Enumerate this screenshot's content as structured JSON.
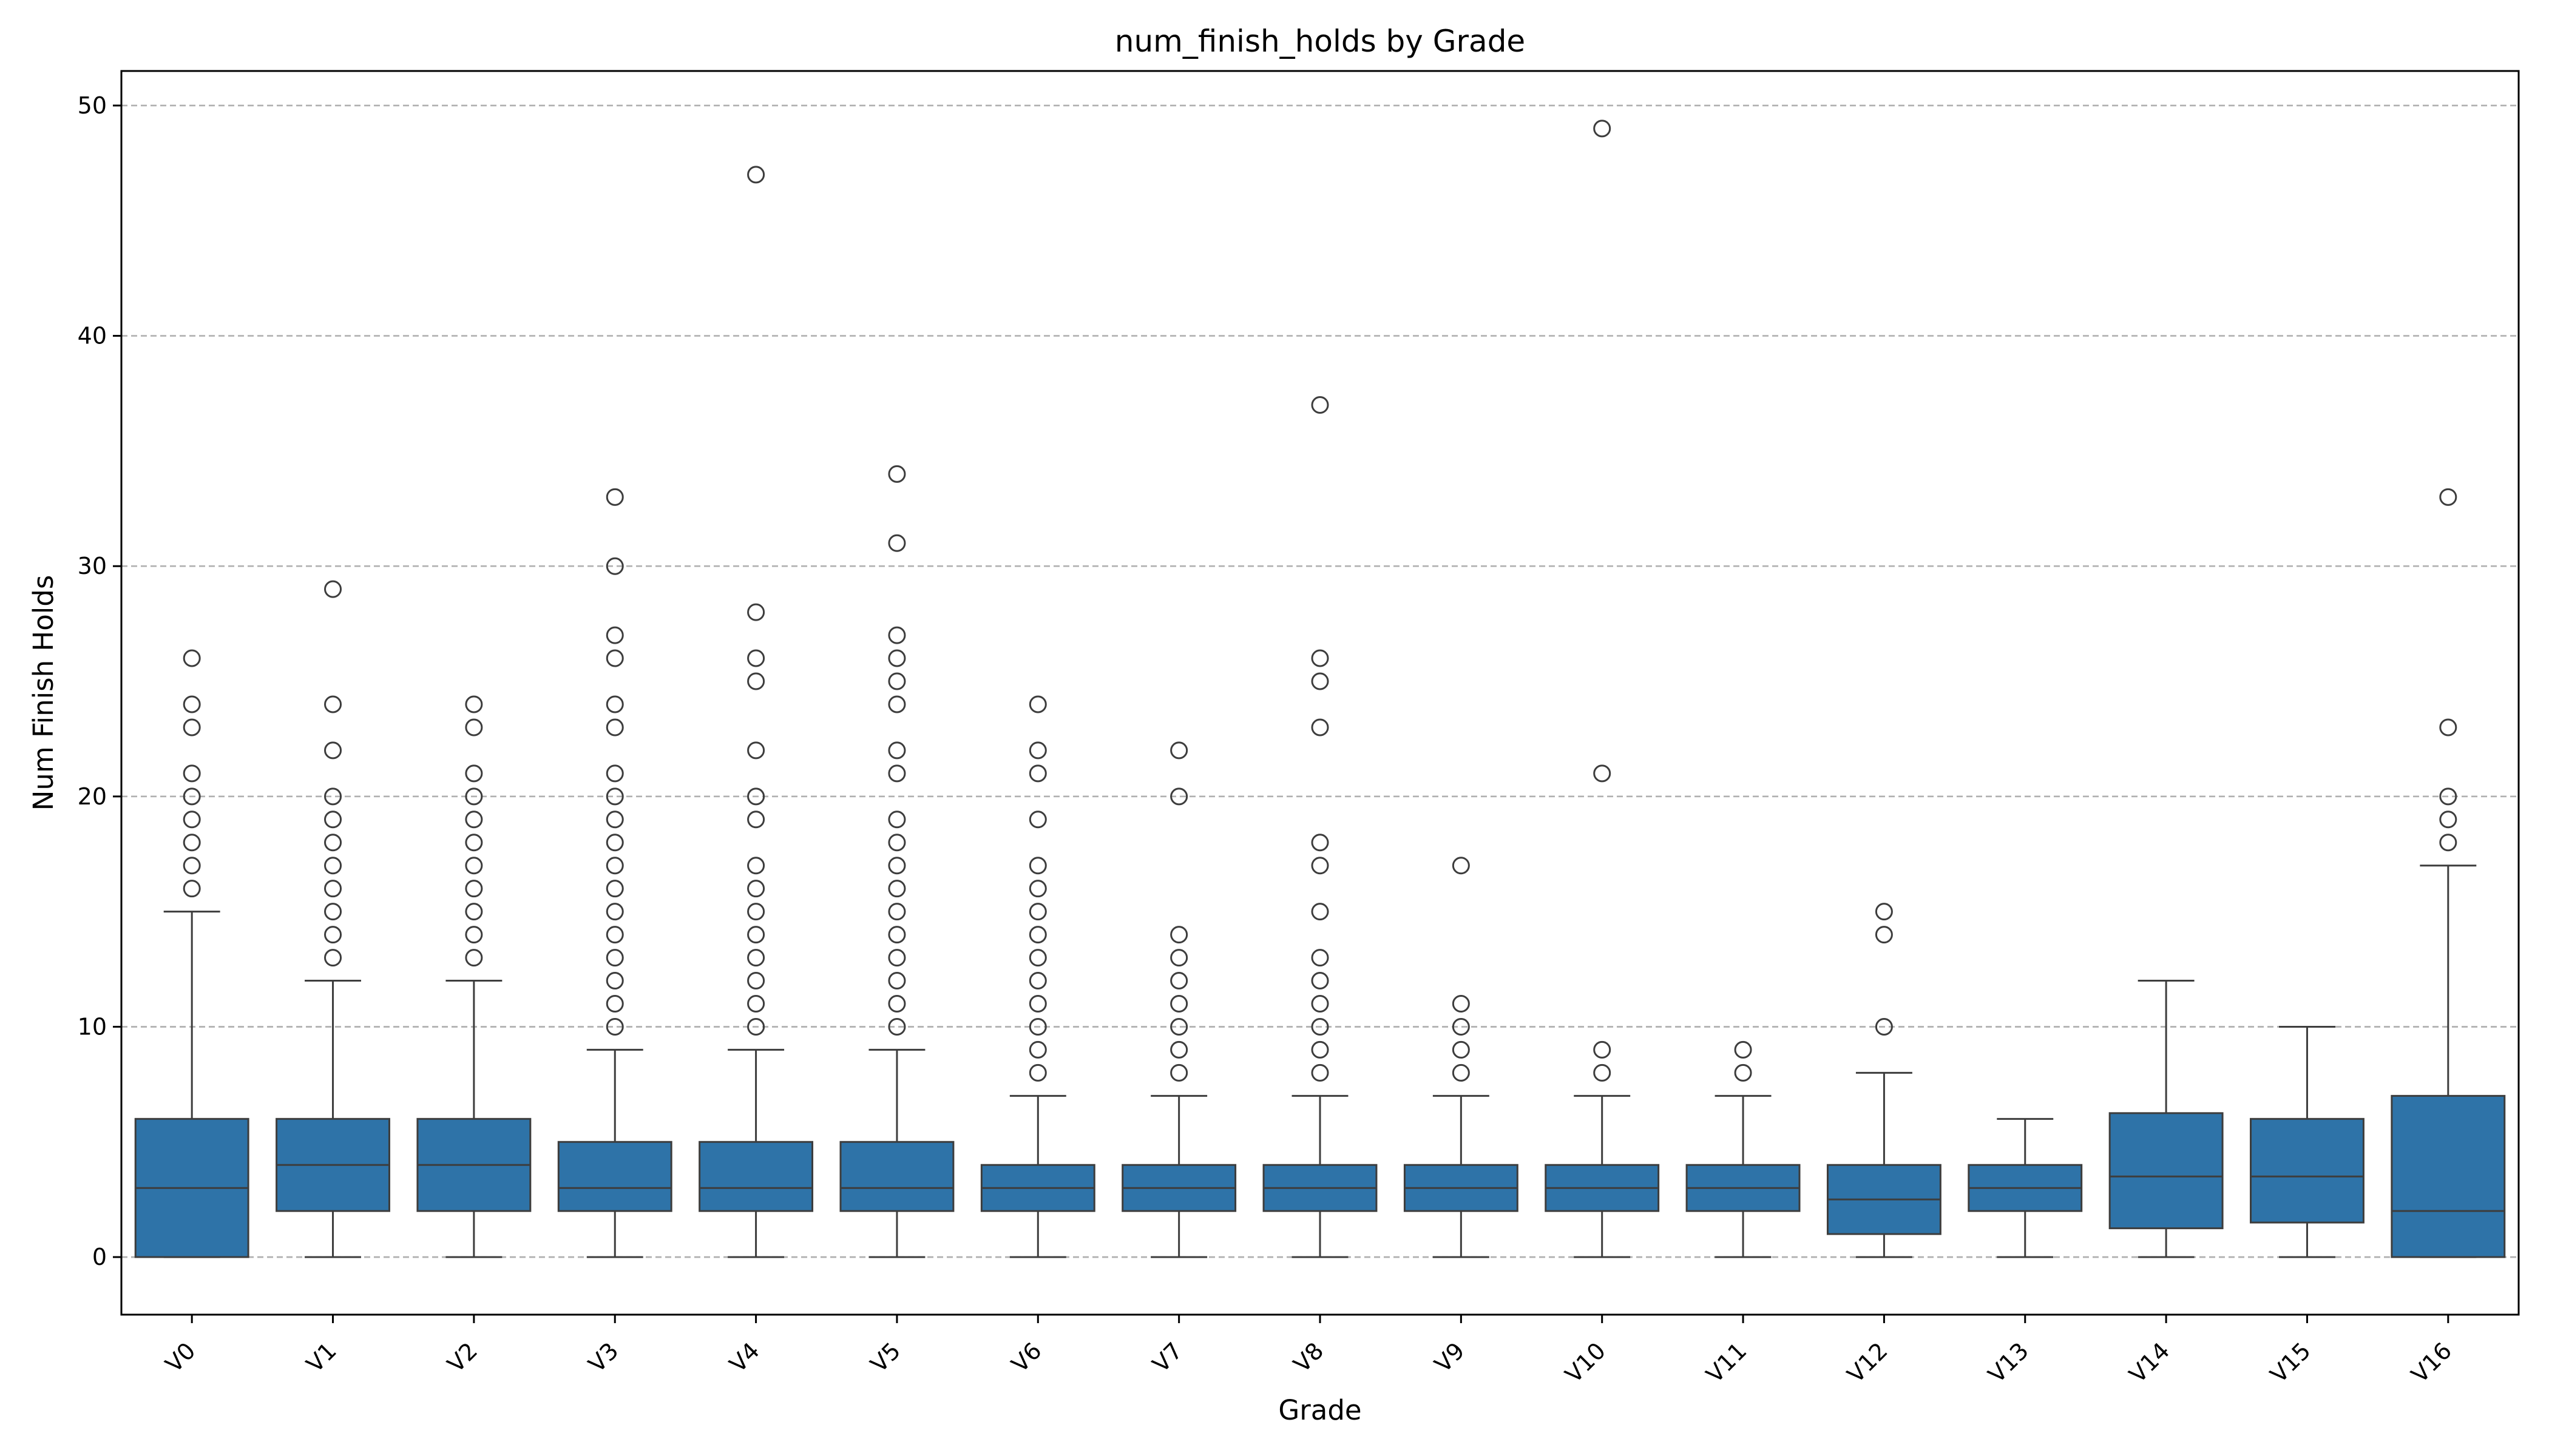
{
  "chart_data": {
    "type": "box",
    "title": "num_finish_holds by Grade",
    "xlabel": "Grade",
    "ylabel": "Num Finish Holds",
    "ylim": [
      -2.5,
      51.5
    ],
    "yticks": [
      0,
      10,
      20,
      30,
      40,
      50
    ],
    "grid": "y-dashed",
    "box_color": "#2e73a8",
    "line_color": "#3d3d3d",
    "categories": [
      "V0",
      "V1",
      "V2",
      "V3",
      "V4",
      "V5",
      "V6",
      "V7",
      "V8",
      "V9",
      "V10",
      "V11",
      "V12",
      "V13",
      "V14",
      "V15",
      "V16"
    ],
    "boxes": [
      {
        "q1": 0,
        "median": 3,
        "q3": 6,
        "whislo": 0,
        "whishi": 15,
        "fliers": [
          16,
          17,
          18,
          19,
          20,
          21,
          23,
          24,
          26
        ]
      },
      {
        "q1": 2,
        "median": 4,
        "q3": 6,
        "whislo": 0,
        "whishi": 12,
        "fliers": [
          13,
          14,
          15,
          16,
          17,
          18,
          19,
          20,
          22,
          24,
          29
        ]
      },
      {
        "q1": 2,
        "median": 4,
        "q3": 6,
        "whislo": 0,
        "whishi": 12,
        "fliers": [
          13,
          14,
          15,
          16,
          17,
          18,
          19,
          20,
          21,
          23,
          24
        ]
      },
      {
        "q1": 2,
        "median": 3,
        "q3": 5,
        "whislo": 0,
        "whishi": 9,
        "fliers": [
          10,
          11,
          12,
          13,
          14,
          15,
          16,
          17,
          18,
          19,
          20,
          21,
          23,
          24,
          26,
          27,
          30,
          33
        ]
      },
      {
        "q1": 2,
        "median": 3,
        "q3": 5,
        "whislo": 0,
        "whishi": 9,
        "fliers": [
          10,
          11,
          12,
          13,
          14,
          15,
          16,
          17,
          19,
          20,
          22,
          25,
          26,
          28,
          47
        ]
      },
      {
        "q1": 2,
        "median": 3,
        "q3": 5,
        "whislo": 0,
        "whishi": 9,
        "fliers": [
          10,
          11,
          12,
          13,
          14,
          15,
          16,
          17,
          18,
          19,
          21,
          22,
          24,
          25,
          26,
          27,
          31,
          34
        ]
      },
      {
        "q1": 2,
        "median": 3,
        "q3": 4,
        "whislo": 0,
        "whishi": 7,
        "fliers": [
          8,
          9,
          10,
          11,
          12,
          13,
          14,
          15,
          16,
          17,
          19,
          21,
          22,
          24
        ]
      },
      {
        "q1": 2,
        "median": 3,
        "q3": 4,
        "whislo": 0,
        "whishi": 7,
        "fliers": [
          8,
          9,
          10,
          11,
          12,
          13,
          14,
          20,
          22
        ]
      },
      {
        "q1": 2,
        "median": 3,
        "q3": 4,
        "whislo": 0,
        "whishi": 7,
        "fliers": [
          8,
          9,
          10,
          11,
          12,
          13,
          15,
          17,
          18,
          23,
          25,
          26,
          37
        ]
      },
      {
        "q1": 2,
        "median": 3,
        "q3": 4,
        "whislo": 0,
        "whishi": 7,
        "fliers": [
          8,
          9,
          10,
          11,
          17
        ]
      },
      {
        "q1": 2,
        "median": 3,
        "q3": 4,
        "whislo": 0,
        "whishi": 7,
        "fliers": [
          8,
          9,
          21,
          49
        ]
      },
      {
        "q1": 2,
        "median": 3,
        "q3": 4,
        "whislo": 0,
        "whishi": 7,
        "fliers": [
          8,
          9
        ]
      },
      {
        "q1": 1,
        "median": 2.5,
        "q3": 4,
        "whislo": 0,
        "whishi": 8,
        "fliers": [
          10,
          14,
          15
        ]
      },
      {
        "q1": 2,
        "median": 3,
        "q3": 4,
        "whislo": 0,
        "whishi": 6,
        "fliers": []
      },
      {
        "q1": 1.25,
        "median": 3.5,
        "q3": 6.25,
        "whislo": 0,
        "whishi": 12,
        "fliers": []
      },
      {
        "q1": 1.5,
        "median": 3.5,
        "q3": 6,
        "whislo": 0,
        "whishi": 10,
        "fliers": []
      },
      {
        "q1": 0,
        "median": 2,
        "q3": 7,
        "whislo": 0,
        "whishi": 17,
        "fliers": [
          18,
          19,
          20,
          23,
          33
        ]
      }
    ]
  }
}
